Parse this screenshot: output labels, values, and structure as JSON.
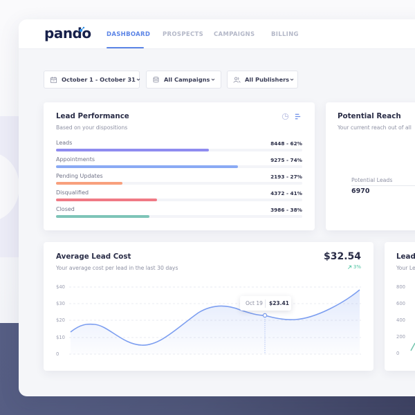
{
  "header": {
    "logo": "pando",
    "tabs": [
      {
        "label": "DASHBOARD",
        "active": true
      },
      {
        "label": "PROSPECTS",
        "active": false
      },
      {
        "label": "CAMPAIGNS",
        "active": false
      },
      {
        "label": "BILLING",
        "active": false
      }
    ]
  },
  "filters": {
    "date": {
      "label": "October 1 - October 31",
      "icon": "calendar-icon"
    },
    "campaigns": {
      "label": "All Campaigns",
      "icon": "database-icon"
    },
    "publishers": {
      "label": "All Publishers",
      "icon": "users-icon"
    }
  },
  "lead_performance": {
    "title": "Lead Performance",
    "subtitle": "Based on your dispositions",
    "icons": [
      "pie-chart-icon",
      "bar-list-icon"
    ],
    "rows": [
      {
        "label": "Leads",
        "value": "8448 - 62%",
        "pct": 62,
        "color": "#8f8cf0"
      },
      {
        "label": "Appointments",
        "value": "9275 - 74%",
        "pct": 74,
        "color": "#8aaaf4"
      },
      {
        "label": "Pending Updates",
        "value": "2193 - 27%",
        "pct": 27,
        "color": "#f8a07d"
      },
      {
        "label": "Disqualified",
        "value": "4372 - 41%",
        "pct": 41,
        "color": "#f07a85"
      },
      {
        "label": "Closed",
        "value": "3986 - 38%",
        "pct": 38,
        "color": "#7ec4b8"
      }
    ]
  },
  "potential_reach": {
    "title": "Potential Reach",
    "subtitle": "Your current reach out of all",
    "metric_label": "Potential Leads",
    "metric_value": "6970"
  },
  "avg_lead_cost": {
    "title": "Average Lead Cost",
    "subtitle": "Your average cost per lead in the last 30 days",
    "value": "$32.54",
    "change": "3%",
    "change_color": "#4fc3a1",
    "tooltip": {
      "date": "Oct 19",
      "value": "$23.41"
    }
  },
  "lead_card_partial": {
    "title": "Lead",
    "subtitle": "Your Le",
    "y_ticks": [
      "800",
      "600",
      "400",
      "200",
      "0"
    ]
  },
  "colors": {
    "accent": "#5b84e6",
    "line": "#7c9ef0",
    "bg_bottom": "#4f5679"
  },
  "chart_data": {
    "type": "area",
    "title": "Average Lead Cost",
    "subtitle": "Your average cost per lead in the last 30 days",
    "xlabel": "",
    "ylabel": "",
    "ylim": [
      0,
      40
    ],
    "y_ticks": [
      "$40",
      "$30",
      "$20",
      "$10",
      "0"
    ],
    "grid": true,
    "x_index": [
      0,
      2,
      7,
      15,
      19,
      22,
      30
    ],
    "values": [
      13.2,
      17.7,
      5.3,
      28.4,
      23.41,
      20.6,
      38.3
    ],
    "highlight": {
      "label": "Oct 19",
      "value": 23.41
    }
  }
}
